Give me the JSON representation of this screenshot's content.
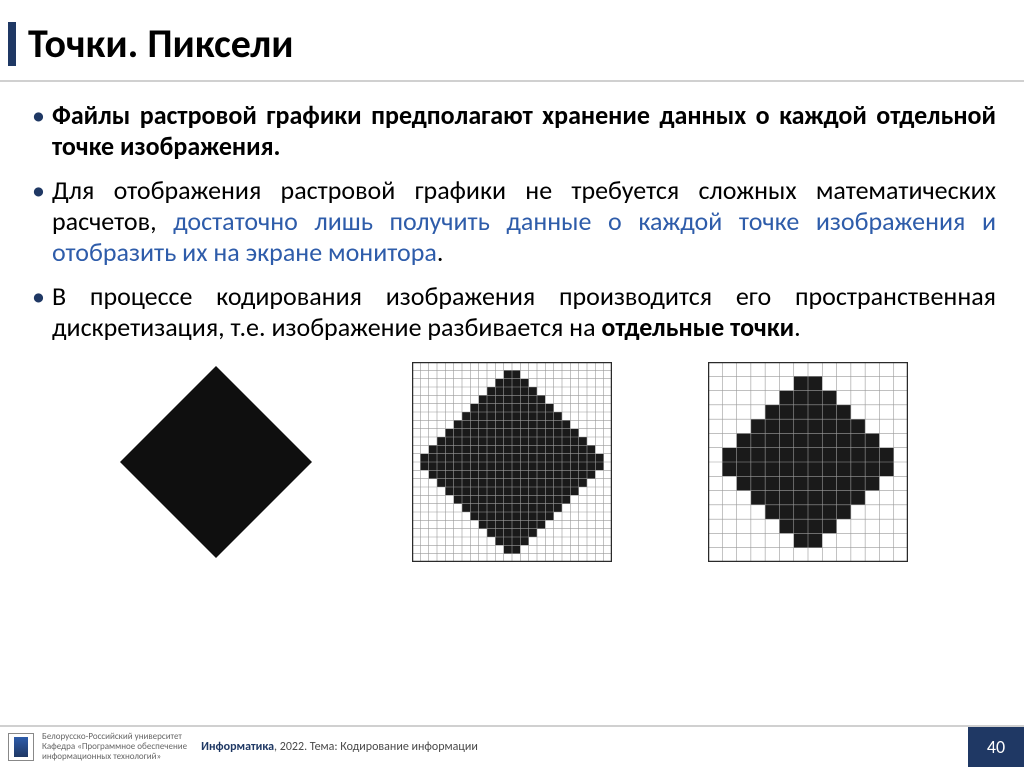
{
  "title": "Точки. Пиксели",
  "bullets": {
    "b1_bold": "Файлы растровой графики предполагают хранение данных о каждой отдельной точке изображения.",
    "b2_pre": "Для отображения растровой графики не требуется сложных математических расчетов, ",
    "b2_hl": "достаточно лишь получить данные о каждой точке изображения и отобразить их на экране монитора",
    "b2_post": ".",
    "b3_pre": "В процессе кодирования изображения производится его пространственная дискретизация, т.е. изображение разбивается на ",
    "b3_bold": "отдельные точки",
    "b3_post": "."
  },
  "figures": {
    "smooth": {
      "size": 200,
      "fill": "#0f0f0f"
    },
    "grid_fine": {
      "size": 200,
      "cells": 24,
      "border": "#2a2a2a",
      "grid_color": "#9a9a9a",
      "fill": "#1a1a1a",
      "bg": "#ffffff"
    },
    "grid_coarse": {
      "size": 200,
      "cells": 14,
      "border": "#2a2a2a",
      "grid_color": "#9a9a9a",
      "fill": "#1a1a1a",
      "bg": "#ffffff"
    }
  },
  "footer": {
    "uni_line1": "Белорусско-Российский университет",
    "uni_line2": "Кафедра «Программное обеспечение",
    "uni_line3": "информационных технологий»",
    "course_bold": "Информатика",
    "course_rest": ", 2022. Тема: Кодирование информации",
    "page": "40"
  },
  "colors": {
    "accent": "#1f3864",
    "link": "#2e5caa",
    "divider": "#d0d0d0"
  }
}
